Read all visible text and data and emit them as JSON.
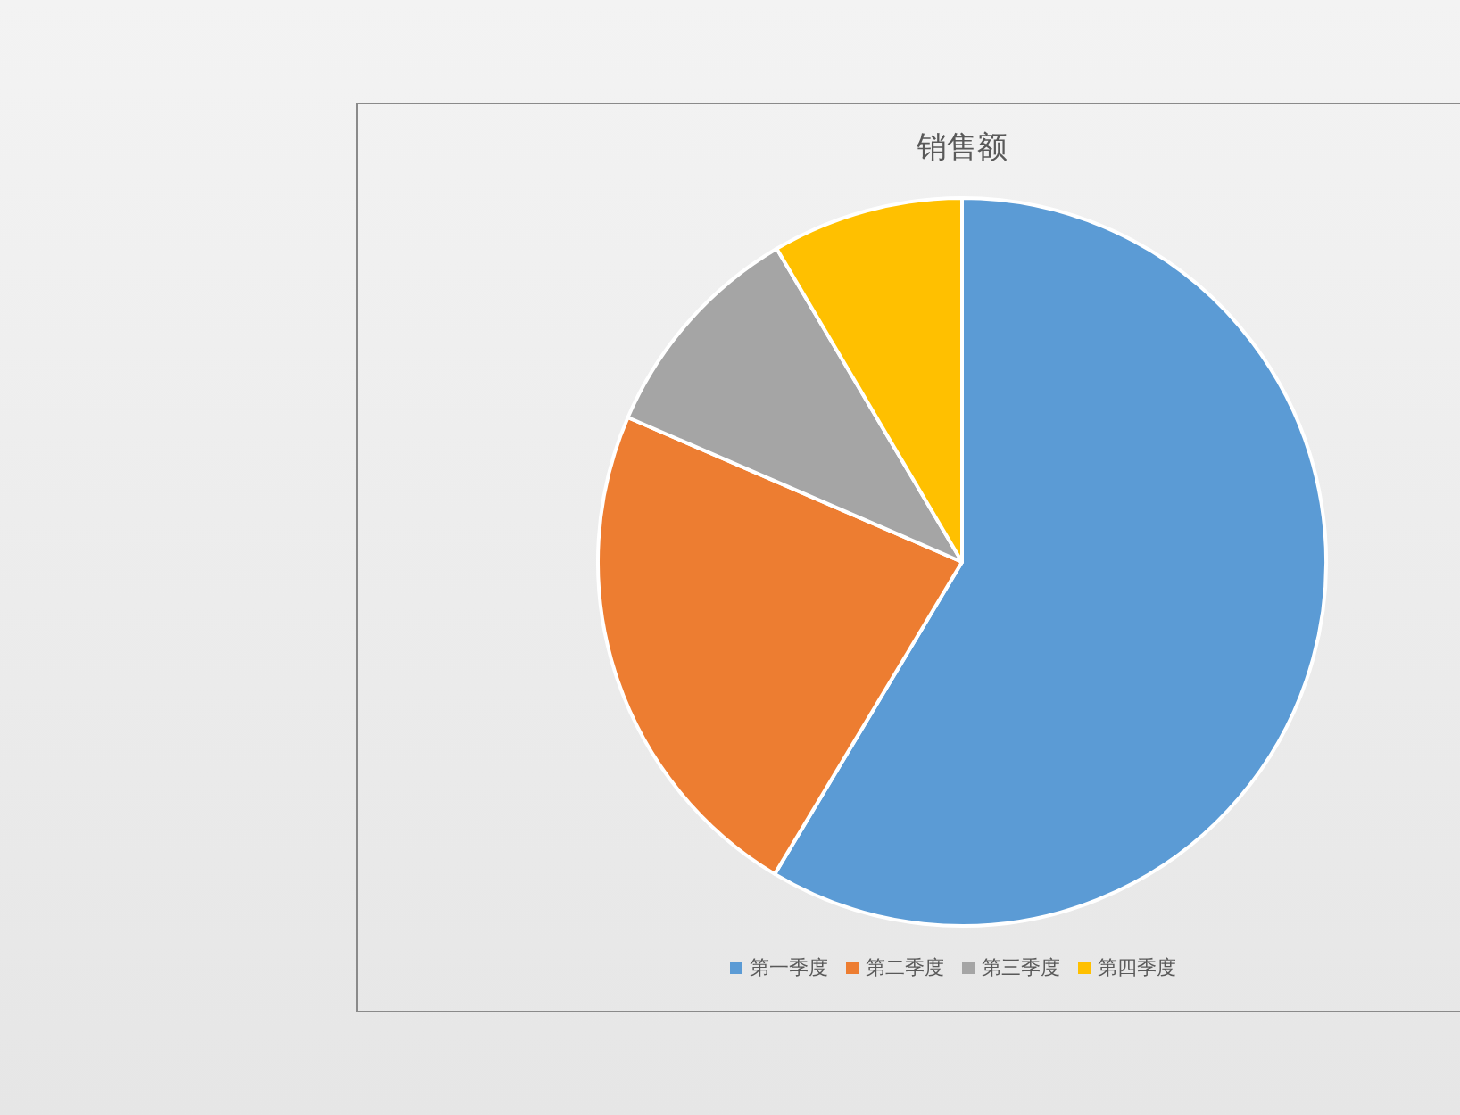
{
  "chart_data": {
    "type": "pie",
    "title": "销售额",
    "categories": [
      "第一季度",
      "第二季度",
      "第三季度",
      "第四季度"
    ],
    "values": [
      58.6,
      22.9,
      10.0,
      8.5
    ],
    "colors": [
      "#5b9bd5",
      "#ed7d31",
      "#a5a5a5",
      "#ffc000"
    ],
    "legend": "bottom"
  }
}
